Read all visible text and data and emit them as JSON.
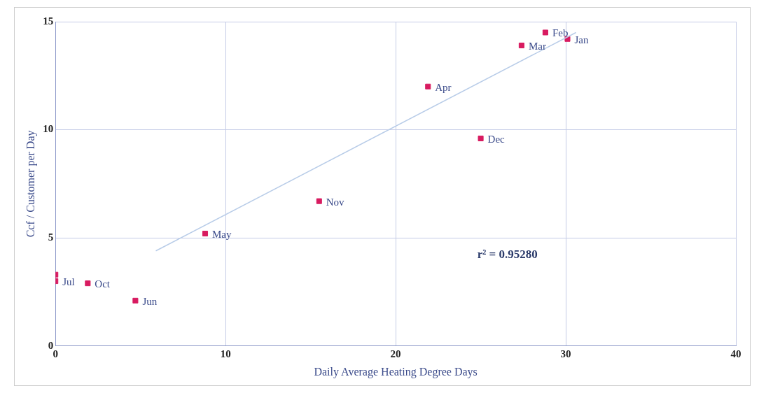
{
  "chart_data": {
    "type": "scatter",
    "xlabel": "Daily Average Heating Degree Days",
    "ylabel": "Ccf / Customer per Day",
    "xlim": [
      0,
      40
    ],
    "ylim": [
      0,
      15
    ],
    "xticks": [
      0,
      10,
      20,
      30,
      40
    ],
    "yticks": [
      0,
      5,
      10,
      15
    ],
    "grid": true,
    "legend": false,
    "marker": "square",
    "series": [
      {
        "color": "#d81b60",
        "x": [
          0,
          0,
          1.9,
          4.7,
          8.8,
          15.5,
          21.9,
          25,
          27.4,
          28.8,
          30.1
        ],
        "values": [
          3.3,
          3.0,
          2.9,
          2.1,
          5.2,
          6.7,
          12.0,
          9.6,
          13.9,
          14.5,
          14.2
        ]
      },
      {
        "type": "line",
        "marker": "none",
        "color": "#b8cce8",
        "x": [
          5.9,
          30.6
        ],
        "values": [
          4.4,
          14.5
        ]
      }
    ],
    "annotations": [
      {
        "text": "Jul",
        "x": 0,
        "y": 3.0
      },
      {
        "text": "Oct",
        "x": 1.9,
        "y": 2.9
      },
      {
        "text": "Jun",
        "x": 4.7,
        "y": 2.1
      },
      {
        "text": "May",
        "x": 8.8,
        "y": 5.2
      },
      {
        "text": "Nov",
        "x": 15.5,
        "y": 6.7
      },
      {
        "text": "Apr",
        "x": 21.9,
        "y": 12.0
      },
      {
        "text": "Dec",
        "x": 25,
        "y": 9.6
      },
      {
        "text": "Mar",
        "x": 27.4,
        "y": 13.9
      },
      {
        "text": "Feb",
        "x": 28.8,
        "y": 14.5
      },
      {
        "text": "Jan",
        "x": 30.1,
        "y": 14.2
      },
      "r² = 0.95280"
    ]
  }
}
